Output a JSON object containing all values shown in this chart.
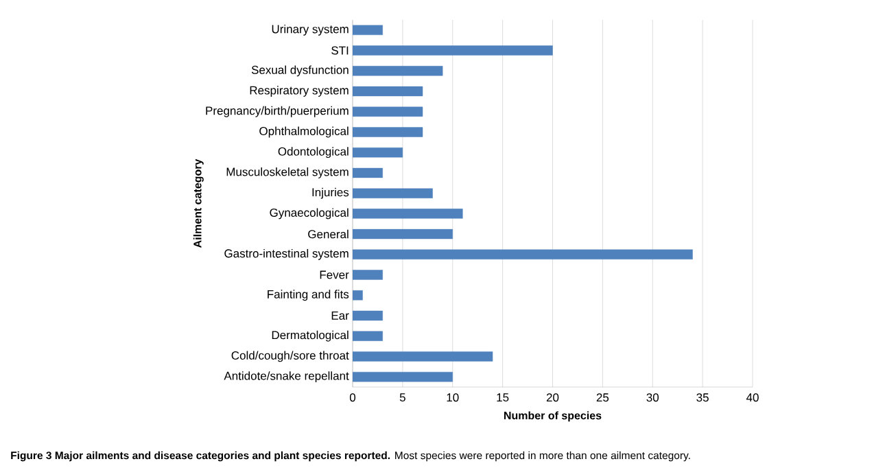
{
  "chart_data": {
    "type": "bar",
    "orientation": "horizontal",
    "categories": [
      "Urinary system",
      "STI",
      "Sexual dysfunction",
      "Respiratory system",
      "Pregnancy/birth/puerperium",
      "Ophthalmological",
      "Odontological",
      "Musculoskeletal system",
      "Injuries",
      "Gynaecological",
      "General",
      "Gastro-intestinal system",
      "Fever",
      "Fainting and fits",
      "Ear",
      "Dermatological",
      "Cold/cough/sore throat",
      "Antidote/snake repellant"
    ],
    "values": [
      3,
      20,
      9,
      7,
      7,
      7,
      5,
      3,
      8,
      11,
      10,
      34,
      3,
      1,
      3,
      3,
      14,
      10
    ],
    "color": "#4f81bd",
    "xlim": [
      0,
      40
    ],
    "xticks": [
      0,
      5,
      10,
      15,
      20,
      25,
      30,
      35,
      40
    ],
    "grid": "x",
    "xlabel": "Number of species",
    "ylabel": "Ailment category",
    "annotations": [
      "**Figure 3 Major ailments and disease categories and plant species reported.** Most species were reported in more than one ailment category."
    ]
  }
}
